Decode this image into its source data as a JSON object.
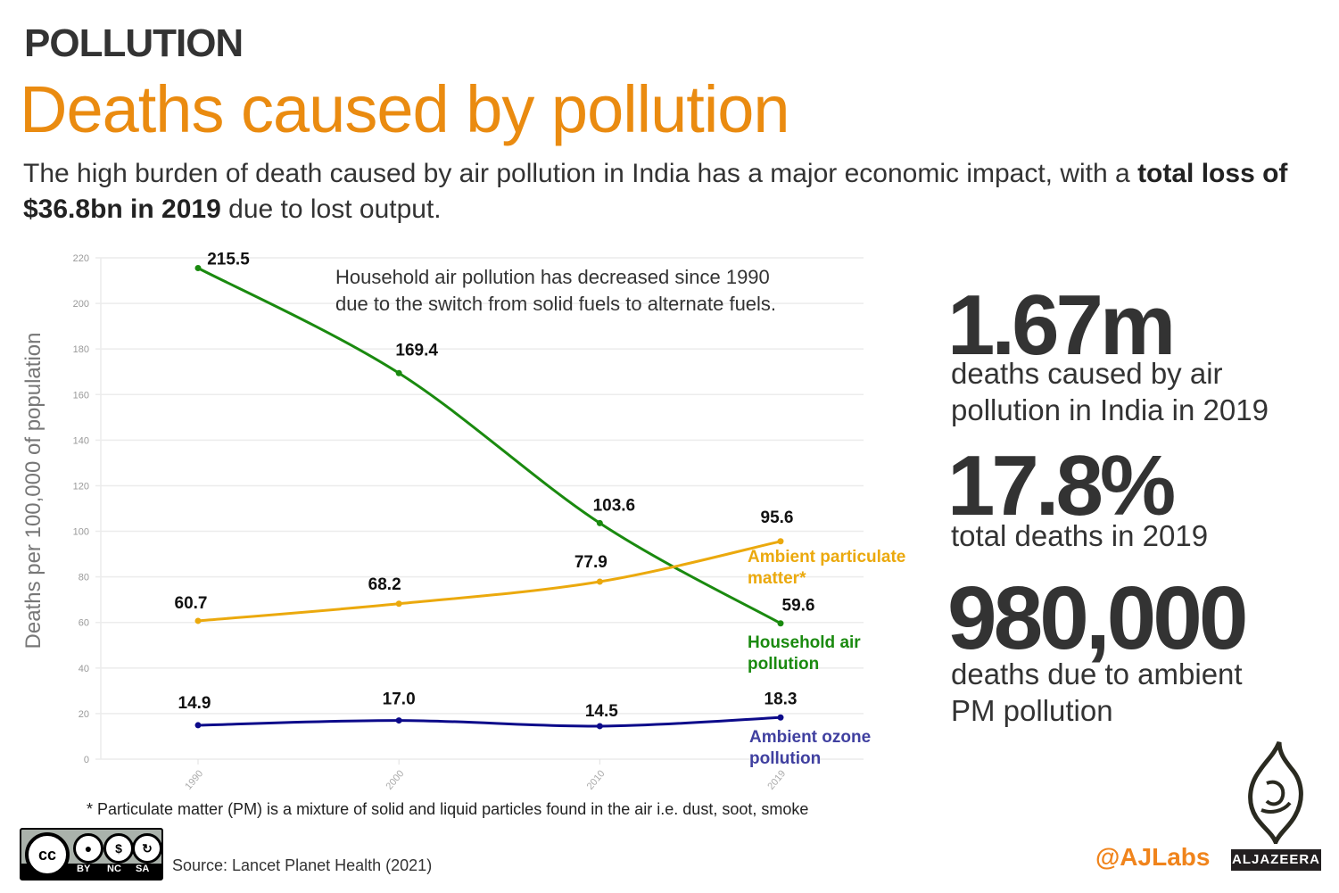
{
  "header": {
    "kicker": "POLLUTION",
    "title": "Deaths caused by pollution",
    "subtitle_pre": "The high burden of death caused by air pollution in India has a major economic impact, with a ",
    "subtitle_bold": "total loss of $36.8bn in 2019",
    "subtitle_post": " due to lost output."
  },
  "stats": [
    {
      "value": "1.67m",
      "desc_line1": "deaths caused by air",
      "desc_line2": "pollution in India in 2019"
    },
    {
      "value": "17.8%",
      "desc_line1": "total deaths in 2019",
      "desc_line2": ""
    },
    {
      "value": "980,000",
      "desc_line1": "deaths due to ambient",
      "desc_line2": "PM pollution"
    }
  ],
  "footnote": "* Particulate matter (PM) is a mixture of solid and liquid particles found in the air i.e. dust, soot, smoke",
  "source": "Source: Lancet Planet Health (2021)",
  "license": {
    "icon": "creative-commons-by-nc-sa-icon",
    "badge_cc": "cc",
    "labels": [
      "BY",
      "NC",
      "SA"
    ]
  },
  "branding": {
    "handle": "@AJLabs",
    "logo_text": "ALJAZEERA",
    "handle_color": "#f0841c"
  },
  "chart_data": {
    "type": "line",
    "title": "",
    "xlabel": "",
    "ylabel": "Deaths per 100,000 of population",
    "x": [
      1990,
      2000,
      2010,
      2019
    ],
    "x_tick_labels": [
      "1990",
      "2000",
      "2010",
      "2019"
    ],
    "ylim": [
      0,
      220
    ],
    "y_ticks": [
      0,
      20,
      40,
      60,
      80,
      100,
      120,
      140,
      160,
      180,
      200,
      220
    ],
    "grid": true,
    "legend": "direct labels at right end of lines",
    "annotation": {
      "line1": "Household air pollution has decreased since 1990",
      "line2": "due to the switch from solid fuels to alternate fuels."
    },
    "series": [
      {
        "name": "Household air pollution",
        "label_line1": "Household air",
        "label_line2": "pollution",
        "color": "#1a8a0f",
        "values": [
          215.5,
          169.4,
          103.6,
          59.6
        ],
        "value_labels": [
          "215.5",
          "169.4",
          "103.6",
          "59.6"
        ]
      },
      {
        "name": "Ambient particulate matter*",
        "label_line1": "Ambient particulate",
        "label_line2": "matter*",
        "color": "#eba90d",
        "values": [
          60.7,
          68.2,
          77.9,
          95.6
        ],
        "value_labels": [
          "60.7",
          "68.2",
          "77.9",
          "95.6"
        ]
      },
      {
        "name": "Ambient ozone pollution",
        "label_line1": "Ambient ozone",
        "label_line2": "pollution",
        "color": "#0c0a8a",
        "label_color": "#4040a0",
        "values": [
          14.9,
          17.0,
          14.5,
          18.3
        ],
        "value_labels": [
          "14.9",
          "17.0",
          "14.5",
          "18.3"
        ]
      }
    ]
  }
}
